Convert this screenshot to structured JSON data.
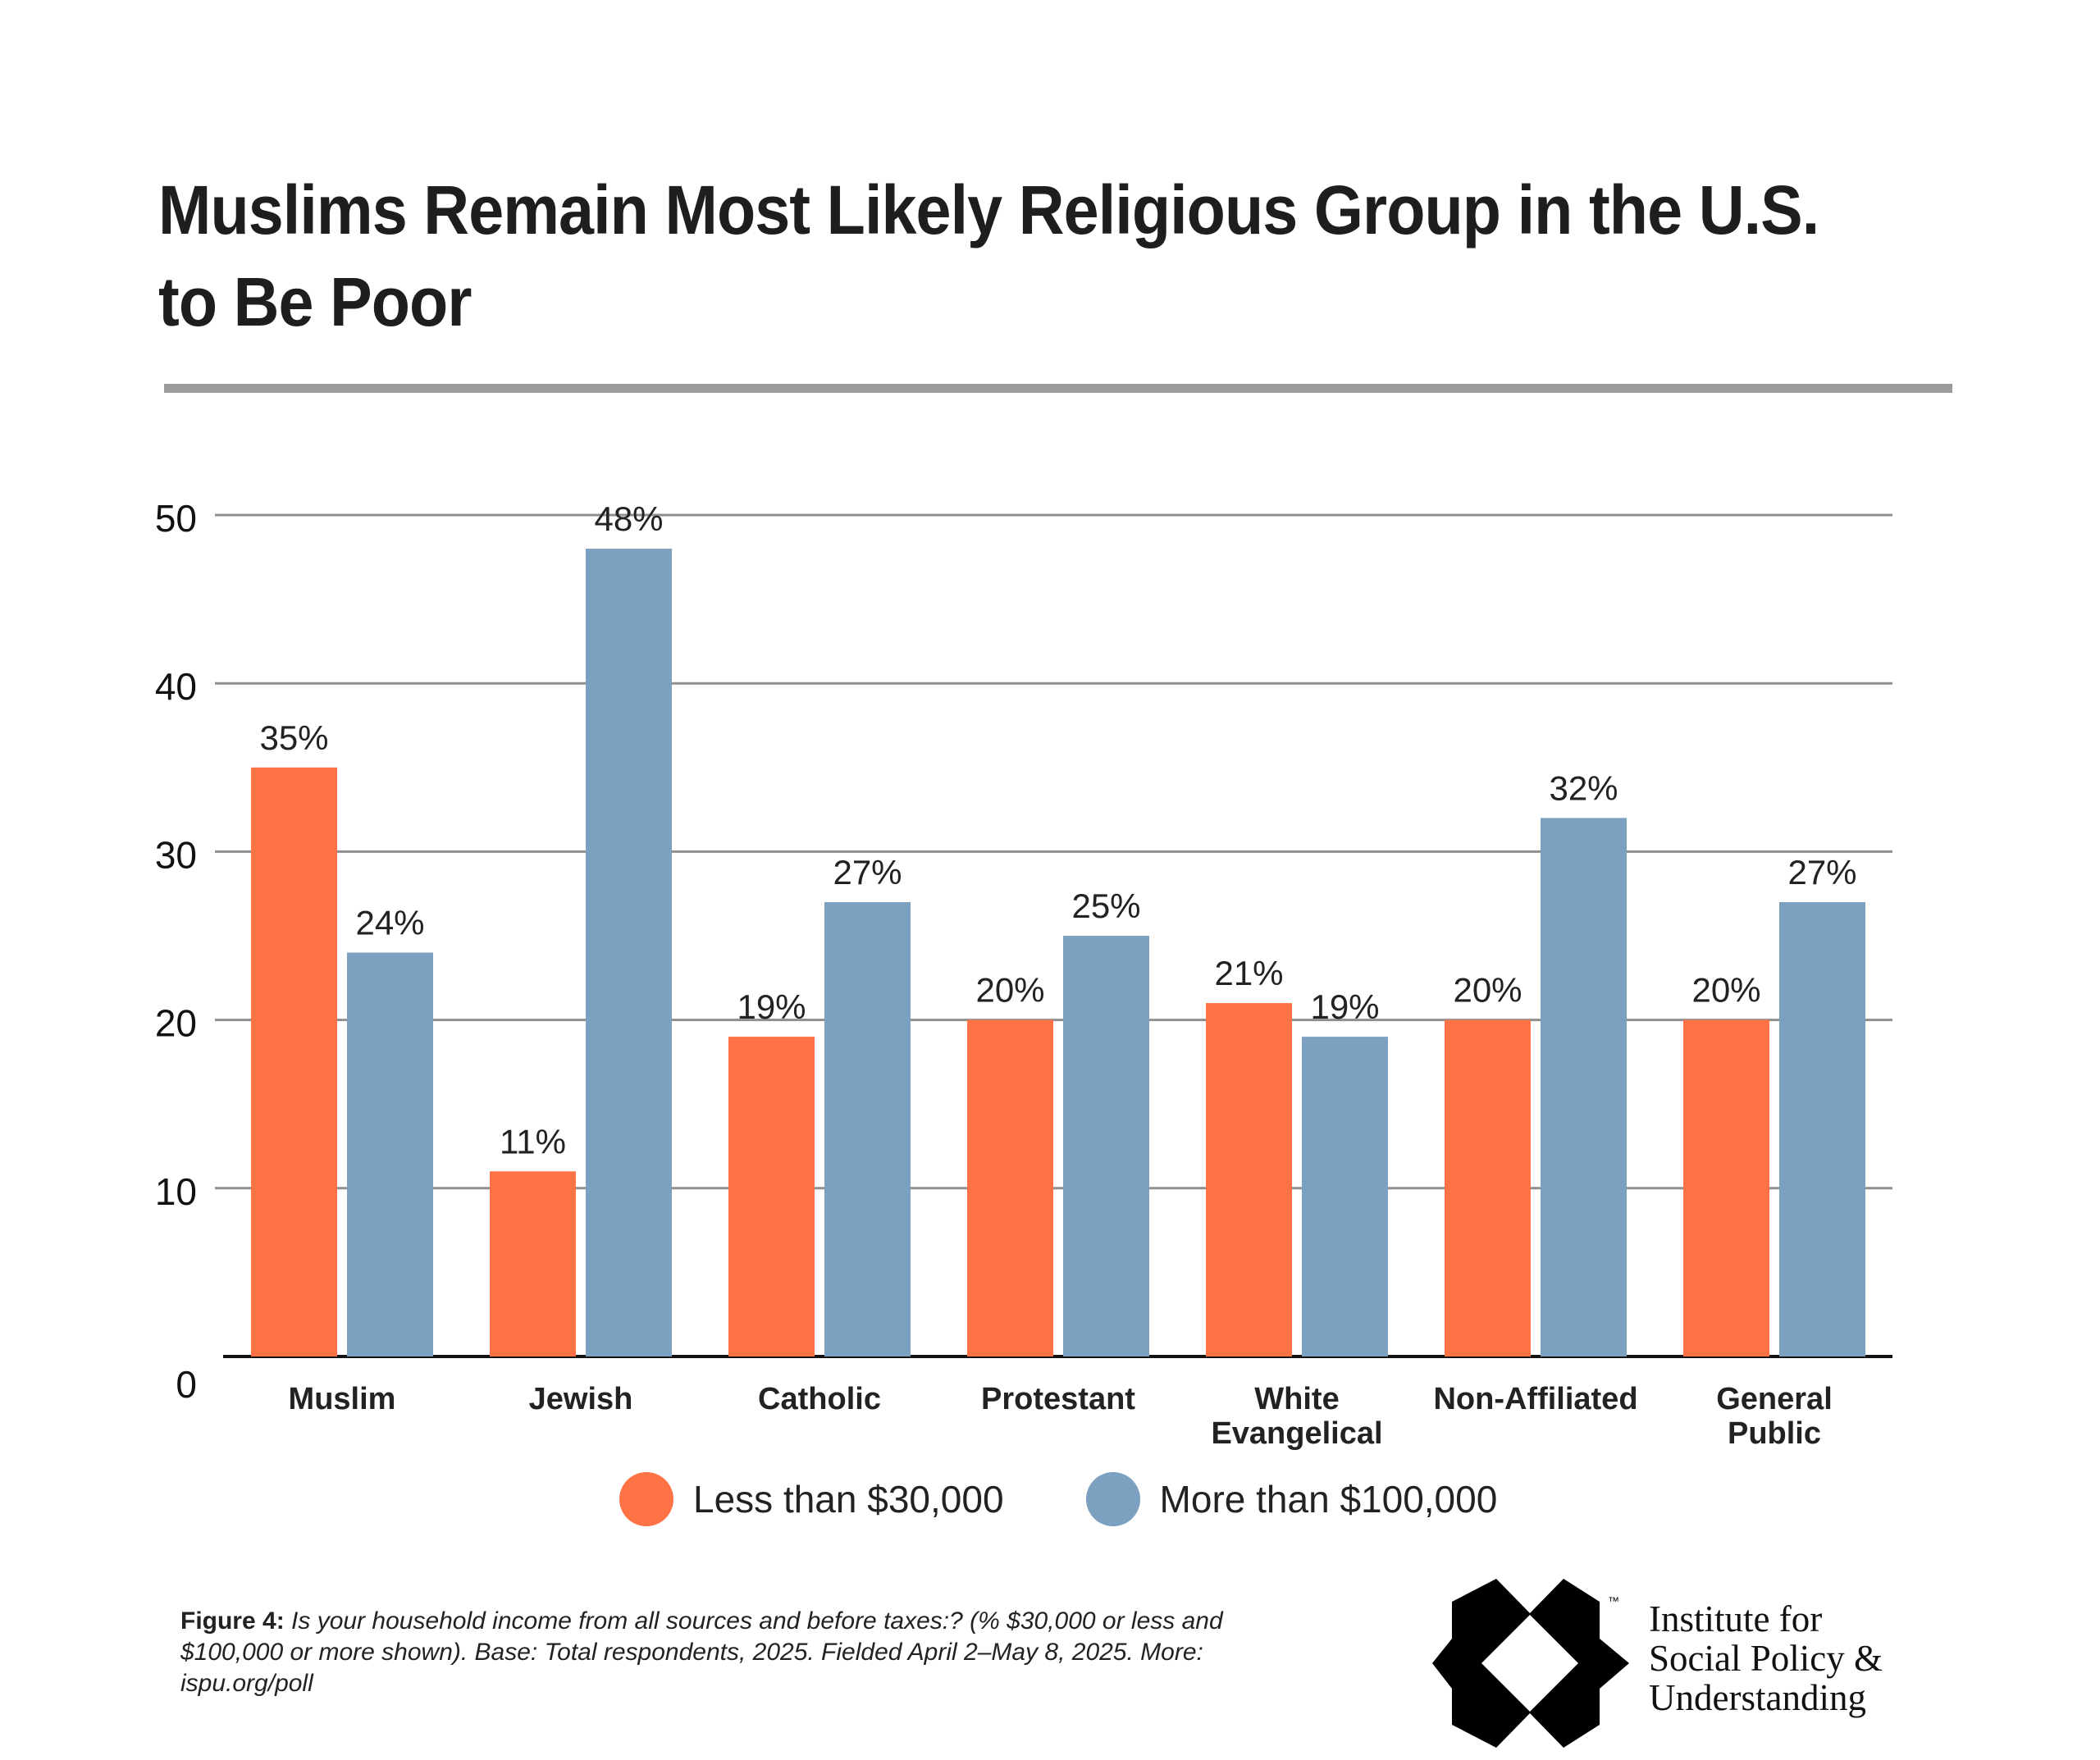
{
  "title_line1": "Muslims Remain Most Likely Religious Group in the U.S.",
  "title_line2": "to Be Poor",
  "chart_data": {
    "type": "bar",
    "title": "Muslims Remain Most Likely Religious Group in the U.S. to Be Poor",
    "xlabel": "",
    "ylabel": "",
    "ylim": [
      0,
      50
    ],
    "yticks": [
      0,
      10,
      20,
      30,
      40,
      50
    ],
    "grid": true,
    "legend_position": "bottom",
    "categories": [
      [
        "Muslim"
      ],
      [
        "Jewish"
      ],
      [
        "Catholic"
      ],
      [
        "Protestant"
      ],
      [
        "White",
        "Evangelical"
      ],
      [
        "Non-Affiliated"
      ],
      [
        "General",
        "Public"
      ]
    ],
    "series": [
      {
        "name": "Less than $30,000",
        "color": "#FF7245",
        "values": [
          35,
          11,
          19,
          20,
          21,
          20,
          20
        ],
        "labels": [
          "35%",
          "11%",
          "19%",
          "20%",
          "21%",
          "20%",
          "20%"
        ]
      },
      {
        "name": "More than $100,000",
        "color": "#7BA0C0",
        "values": [
          24,
          48,
          27,
          25,
          19,
          32,
          27
        ],
        "labels": [
          "24%",
          "48%",
          "27%",
          "25%",
          "19%",
          "32%",
          "27%"
        ]
      }
    ]
  },
  "legend": [
    {
      "label": "Less than $30,000",
      "color": "#FF7245"
    },
    {
      "label": "More than $100,000",
      "color": "#7BA0C0"
    }
  ],
  "footnote": {
    "figure_label": "Figure 4:",
    "text": " Is your household income from all sources and before taxes:? (% $30,000 or less and $100,000 or more shown). Base: Total respondents, 2025. Fielded April 2–May 8, 2025. More: ispu.org/poll"
  },
  "org": {
    "line1": "Institute for",
    "line2": "Social Policy &",
    "line3": "Understanding",
    "tm": "™"
  }
}
